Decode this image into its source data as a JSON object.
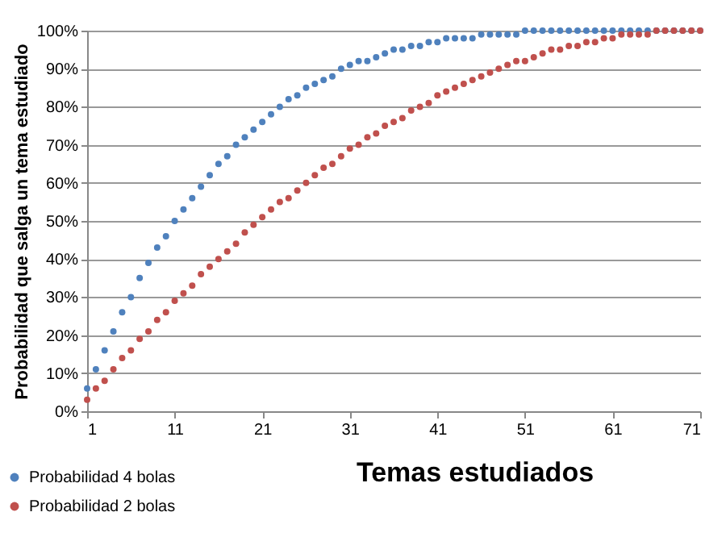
{
  "chart_data": {
    "type": "scatter",
    "xlabel": "Temas estudiados",
    "ylabel": "Probabilidad que salga un tema estudiado",
    "x": [
      1,
      2,
      3,
      4,
      5,
      6,
      7,
      8,
      9,
      10,
      11,
      12,
      13,
      14,
      15,
      16,
      17,
      18,
      19,
      20,
      21,
      22,
      23,
      24,
      25,
      26,
      27,
      28,
      29,
      30,
      31,
      32,
      33,
      34,
      35,
      36,
      37,
      38,
      39,
      40,
      41,
      42,
      43,
      44,
      45,
      46,
      47,
      48,
      49,
      50,
      51,
      52,
      53,
      54,
      55,
      56,
      57,
      58,
      59,
      60,
      61,
      62,
      63,
      64,
      65,
      66,
      67,
      68,
      69,
      70,
      71
    ],
    "series": [
      {
        "name": "Probabilidad 4 bolas",
        "color": "#4f81bd",
        "values": [
          6,
          11,
          16,
          21,
          26,
          30,
          35,
          39,
          43,
          46,
          50,
          53,
          56,
          59,
          62,
          65,
          67,
          70,
          72,
          74,
          76,
          78,
          80,
          82,
          83,
          85,
          86,
          87,
          88,
          90,
          91,
          92,
          92,
          93,
          94,
          95,
          95,
          96,
          96,
          97,
          97,
          98,
          98,
          98,
          98,
          99,
          99,
          99,
          99,
          99,
          100,
          100,
          100,
          100,
          100,
          100,
          100,
          100,
          100,
          100,
          100,
          100,
          100,
          100,
          100,
          100,
          100,
          100,
          100,
          100,
          100
        ]
      },
      {
        "name": "Probabilidad 2 bolas",
        "color": "#c0504d",
        "values": [
          3,
          6,
          8,
          11,
          14,
          16,
          19,
          21,
          24,
          26,
          29,
          31,
          33,
          36,
          38,
          40,
          42,
          44,
          47,
          49,
          51,
          53,
          55,
          56,
          58,
          60,
          62,
          64,
          65,
          67,
          69,
          70,
          72,
          73,
          75,
          76,
          77,
          79,
          80,
          81,
          83,
          84,
          85,
          86,
          87,
          88,
          89,
          90,
          91,
          92,
          92,
          93,
          94,
          95,
          95,
          96,
          96,
          97,
          97,
          98,
          98,
          99,
          99,
          99,
          99,
          100,
          100,
          100,
          100,
          100,
          100
        ]
      }
    ],
    "xlim": [
      1,
      71
    ],
    "xticks": [
      1,
      11,
      21,
      31,
      41,
      51,
      61,
      71
    ],
    "ylim": [
      0,
      100
    ],
    "yticks": [
      {
        "value": 0,
        "label": "0%"
      },
      {
        "value": 10,
        "label": "10%"
      },
      {
        "value": 20,
        "label": "20%"
      },
      {
        "value": 30,
        "label": "30%"
      },
      {
        "value": 40,
        "label": "40%"
      },
      {
        "value": 50,
        "label": "50%"
      },
      {
        "value": 60,
        "label": "60%"
      },
      {
        "value": 70,
        "label": "70%"
      },
      {
        "value": 80,
        "label": "80%"
      },
      {
        "value": 90,
        "label": "90%"
      },
      {
        "value": 100,
        "label": "100%"
      }
    ],
    "grid": "y",
    "legend": "bottom left",
    "marker": "circle"
  }
}
